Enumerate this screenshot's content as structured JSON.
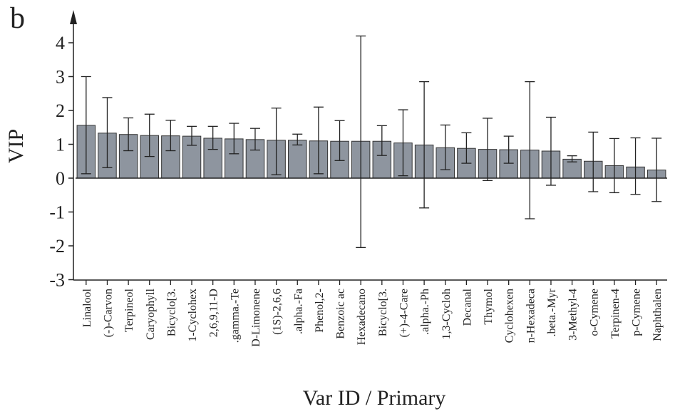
{
  "panel_label": "b",
  "chart_data": {
    "type": "bar",
    "xlabel": "Var ID / Primary",
    "ylabel": "VIP",
    "ylim": [
      -3,
      4.5
    ],
    "yticks": [
      -3,
      -2,
      -1,
      0,
      1,
      2,
      3,
      4
    ],
    "grid": false,
    "bar_color": "#8e959f",
    "categories": [
      "Linalool",
      "(-)-Carvon",
      "Terpineol",
      "Caryophyll",
      "Bicyclo[3.",
      "1-Cyclohex",
      "2,6,9,11-D",
      ".gamma.-Te",
      "D-Limonene",
      "(1S)-2,6,6",
      ".alpha.-Fa",
      "Phenol,2-",
      "Benzoic ac",
      "Hexadecano",
      "Bicyclo[3.",
      "(+)-4-Care",
      ".alpha.-Ph",
      "1,3-Cycloh",
      "Decanal",
      "Thymol",
      "Cyclohexen",
      "n-Hexadeca",
      ".beta.-Myr",
      "3-Methyl-4",
      "o-Cymene",
      "Terpinen-4",
      "p-Cymene",
      "Naphthalen"
    ],
    "values": [
      1.56,
      1.33,
      1.29,
      1.26,
      1.25,
      1.24,
      1.18,
      1.16,
      1.14,
      1.12,
      1.12,
      1.1,
      1.09,
      1.09,
      1.09,
      1.04,
      0.98,
      0.9,
      0.88,
      0.85,
      0.84,
      0.83,
      0.8,
      0.56,
      0.5,
      0.37,
      0.33,
      0.24
    ],
    "error_low": [
      0.13,
      0.31,
      0.81,
      0.64,
      0.81,
      0.97,
      0.85,
      0.72,
      0.83,
      0.1,
      0.98,
      0.13,
      0.52,
      -2.05,
      0.67,
      0.07,
      -0.88,
      0.25,
      0.44,
      -0.07,
      0.44,
      -1.2,
      -0.21,
      0.48,
      -0.4,
      -0.43,
      -0.48,
      -0.69
    ],
    "error_high": [
      3.0,
      2.38,
      1.78,
      1.89,
      1.71,
      1.53,
      1.53,
      1.62,
      1.47,
      2.07,
      1.3,
      2.1,
      1.7,
      4.2,
      1.55,
      2.02,
      2.85,
      1.57,
      1.34,
      1.77,
      1.24,
      2.85,
      1.8,
      0.66,
      1.36,
      1.17,
      1.19,
      1.18
    ]
  }
}
